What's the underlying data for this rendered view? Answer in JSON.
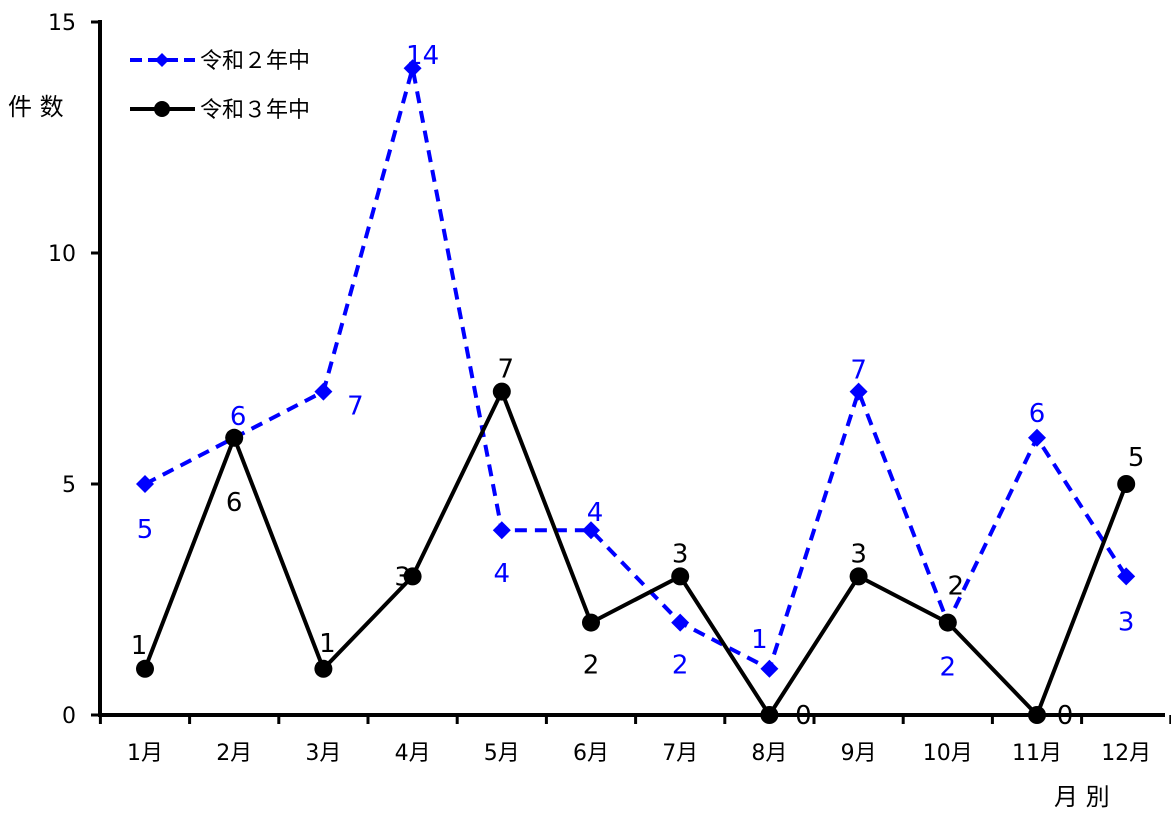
{
  "chart_data": {
    "type": "line",
    "categories": [
      "1月",
      "2月",
      "3月",
      "4月",
      "5月",
      "6月",
      "7月",
      "8月",
      "9月",
      "10月",
      "11月",
      "12月"
    ],
    "series": [
      {
        "name": "令和２年中",
        "values": [
          5,
          6,
          7,
          14,
          4,
          4,
          2,
          1,
          7,
          2,
          6,
          3
        ],
        "color": "#0000ff",
        "line_style": "dashed",
        "marker": "diamond"
      },
      {
        "name": "令和３年中",
        "values": [
          1,
          6,
          1,
          3,
          7,
          2,
          3,
          0,
          3,
          2,
          0,
          5
        ],
        "color": "#000000",
        "line_style": "solid",
        "marker": "circle"
      }
    ],
    "ylabel": "件 数",
    "xlabel": "月 別",
    "ylim": [
      0,
      15
    ],
    "yticks": [
      0,
      5,
      10,
      15
    ],
    "grid": false,
    "legend_placement": "top-left",
    "data_labels": true
  }
}
